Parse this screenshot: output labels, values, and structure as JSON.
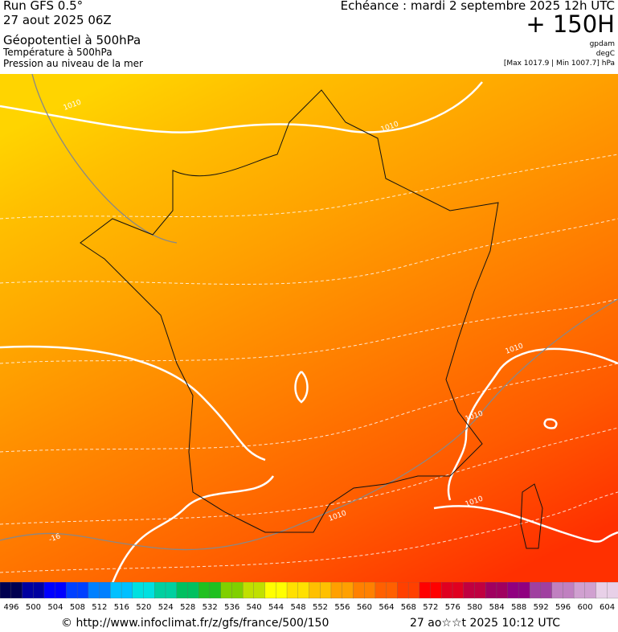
{
  "header": {
    "run": "Run GFS 0.5°",
    "date": "27 aout 2025 06Z",
    "field1": "Géopotentiel à 500hPa",
    "field2": "Température à 500hPa",
    "field3": "Pression au niveau de la mer",
    "echeance": "Echéance : mardi 2 septembre 2025 12h UTC",
    "lead": "+ 150H",
    "unit1": "gpdam",
    "unit2": "degC",
    "range": "[Max 1017.9 | Min 1007.7] hPa"
  },
  "map": {
    "contour_labels": [
      "1010",
      "1010",
      "1010",
      "1010",
      "1010",
      "1010",
      "-16"
    ]
  },
  "scale": {
    "labels": [
      496,
      500,
      504,
      508,
      512,
      516,
      520,
      524,
      528,
      532,
      536,
      540,
      544,
      548,
      552,
      556,
      560,
      564,
      568,
      572,
      576,
      580,
      584,
      588,
      592,
      596,
      600,
      604
    ]
  },
  "footer": {
    "url": "© http://www.infoclimat.fr/z/gfs/france/500/150",
    "stamp": "27 ao☆☆t 2025 10:12 UTC"
  }
}
